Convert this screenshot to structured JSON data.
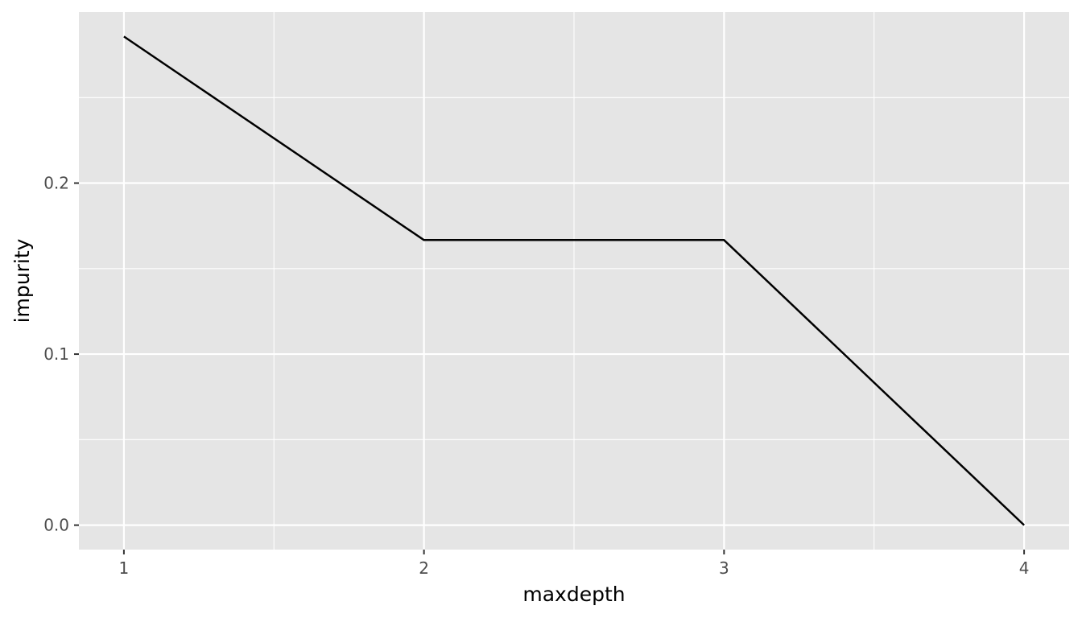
{
  "chart_data": {
    "type": "line",
    "title": "",
    "xlabel": "maxdepth",
    "ylabel": "impurity",
    "x": [
      1,
      2,
      3,
      4
    ],
    "series": [
      {
        "values": [
          0.2857,
          0.1667,
          0.1667,
          0.0
        ]
      }
    ],
    "xlim": [
      0.85,
      4.15
    ],
    "ylim": [
      -0.0143,
      0.3
    ],
    "x_ticks": [
      1,
      2,
      3,
      4
    ],
    "x_tick_labels": [
      "1",
      "2",
      "3",
      "4"
    ],
    "y_ticks": [
      0.0,
      0.1,
      0.2
    ],
    "y_tick_labels": [
      "0.0",
      "0.1",
      "0.2"
    ],
    "grid": true,
    "colors": {
      "panel": "#e5e5e5",
      "grid": "#ffffff",
      "line": "#000000",
      "tick_text": "#4d4d4d"
    }
  }
}
